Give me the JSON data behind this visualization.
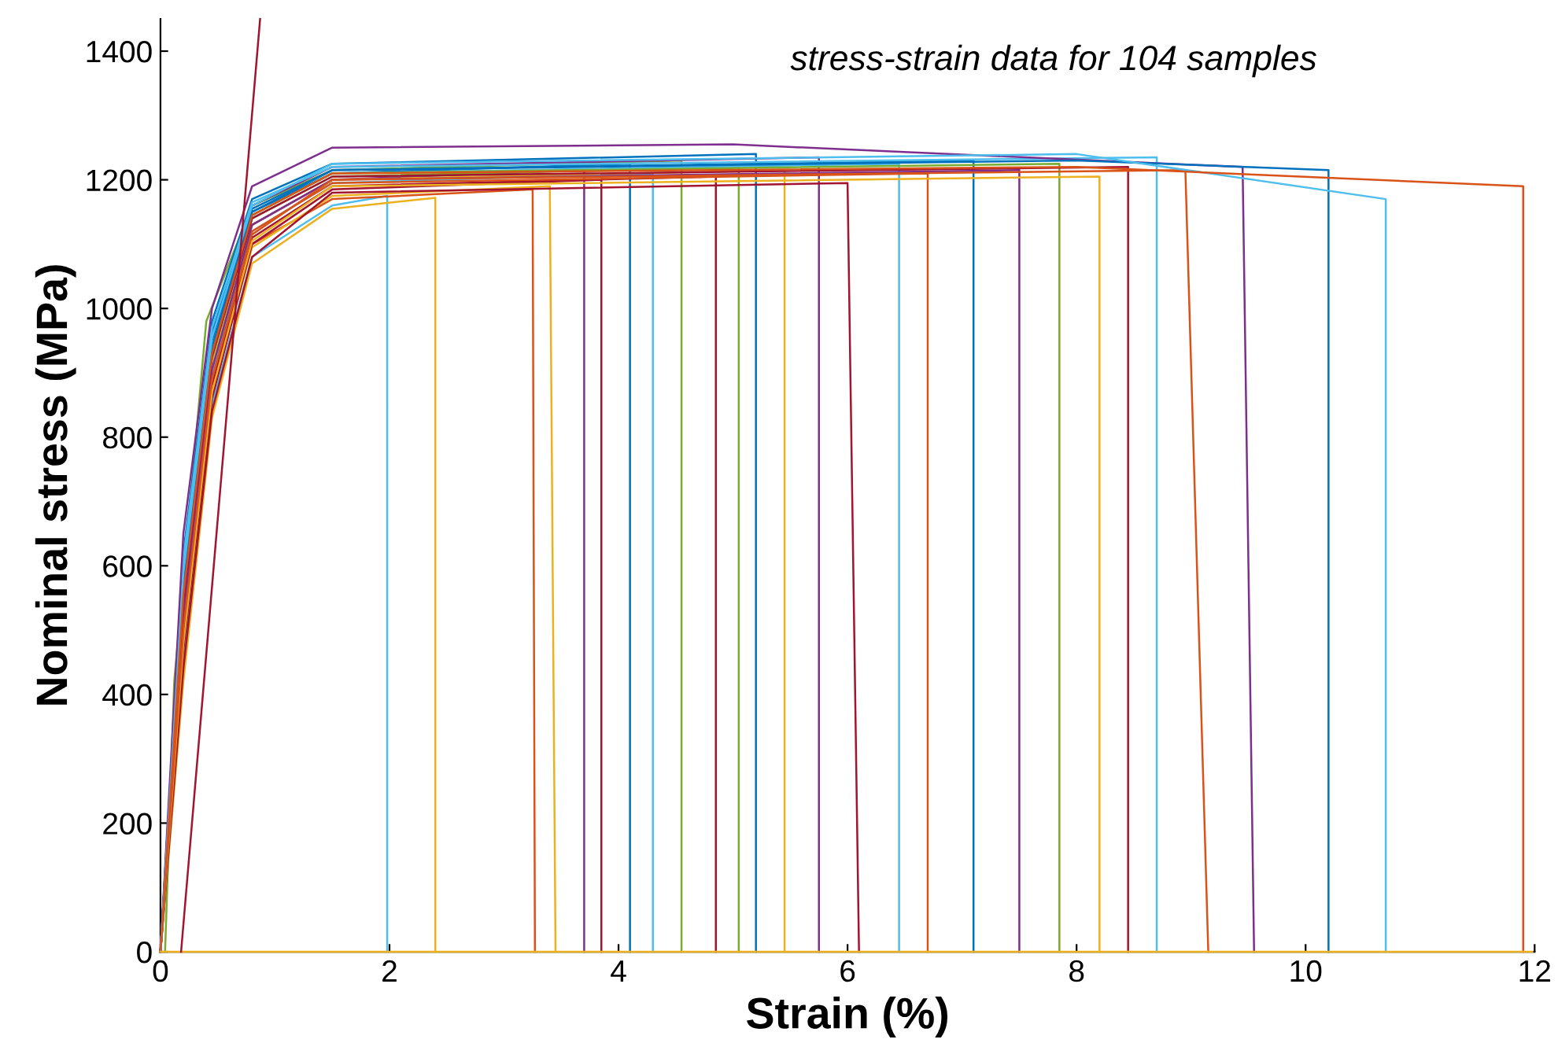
{
  "chart_data": {
    "type": "line",
    "xlabel": "Strain (%)",
    "ylabel": "Nominal stress (MPa)",
    "annotations": [
      "stress-strain data for 104 samples"
    ],
    "xlim": [
      0,
      12
    ],
    "xticks": [
      0,
      2,
      4,
      6,
      8,
      10,
      12
    ],
    "ylim": [
      0,
      1450
    ],
    "yticks": [
      0,
      200,
      400,
      600,
      800,
      1000,
      1200,
      1400
    ],
    "grid": false,
    "legend": false,
    "marker": "none",
    "line_style": "solid",
    "series": [
      {
        "color": "#4dbeee",
        "x": [
          0,
          0.2,
          0.45,
          0.8,
          1.5,
          1.98,
          1.98
        ],
        "values": [
          0,
          450,
          850,
          1080,
          1160,
          1175,
          0
        ]
      },
      {
        "color": "#edb120",
        "x": [
          0,
          0.2,
          0.45,
          0.8,
          1.5,
          2.4,
          2.4
        ],
        "values": [
          0,
          420,
          830,
          1070,
          1155,
          1172,
          0
        ]
      },
      {
        "color": "#d95319",
        "x": [
          0,
          0.2,
          0.45,
          0.8,
          1.5,
          3.25,
          3.27
        ],
        "values": [
          0,
          500,
          880,
          1100,
          1170,
          1185,
          0
        ]
      },
      {
        "color": "#edb120",
        "x": [
          0,
          0.2,
          0.45,
          0.8,
          1.5,
          3.4,
          3.45
        ],
        "values": [
          0,
          480,
          870,
          1095,
          1175,
          1190,
          0
        ]
      },
      {
        "color": "#7e2f8e",
        "x": [
          0,
          0.2,
          0.45,
          0.8,
          1.5,
          3.7,
          3.7
        ],
        "values": [
          0,
          560,
          930,
          1130,
          1200,
          1215,
          0
        ]
      },
      {
        "color": "#a2142f",
        "x": [
          0,
          0.2,
          0.45,
          0.8,
          1.5,
          3.85,
          3.85
        ],
        "values": [
          0,
          470,
          860,
          1100,
          1185,
          1200,
          0
        ]
      },
      {
        "color": "#0072bd",
        "x": [
          0,
          0.2,
          0.45,
          0.8,
          1.5,
          4.1,
          4.1
        ],
        "values": [
          0,
          580,
          950,
          1150,
          1210,
          1225,
          0
        ]
      },
      {
        "color": "#4dbeee",
        "x": [
          0,
          0.2,
          0.45,
          0.8,
          1.5,
          4.3,
          4.3
        ],
        "values": [
          0,
          520,
          900,
          1120,
          1195,
          1210,
          0
        ]
      },
      {
        "color": "#77ac30",
        "x": [
          0.04,
          0.12,
          0.4,
          0.8,
          1.5,
          4.55,
          4.55
        ],
        "values": [
          0,
          420,
          980,
          1160,
          1215,
          1230,
          0
        ]
      },
      {
        "color": "#a2142f",
        "x": [
          0,
          0.2,
          0.45,
          0.8,
          1.5,
          4.85,
          4.85
        ],
        "values": [
          0,
          490,
          880,
          1110,
          1190,
          1205,
          0
        ]
      },
      {
        "color": "#77ac30",
        "x": [
          0,
          0.2,
          0.45,
          0.8,
          1.5,
          5.05,
          5.05
        ],
        "values": [
          0,
          540,
          920,
          1140,
          1205,
          1220,
          0
        ]
      },
      {
        "color": "#0072bd",
        "x": [
          0,
          0.2,
          0.45,
          0.8,
          1.5,
          5.2,
          5.2
        ],
        "values": [
          0,
          620,
          980,
          1170,
          1225,
          1240,
          0
        ]
      },
      {
        "color": "#edb120",
        "x": [
          0,
          0.2,
          0.45,
          0.8,
          1.5,
          5.45,
          5.45
        ],
        "values": [
          0,
          530,
          910,
          1130,
          1200,
          1215,
          0
        ]
      },
      {
        "color": "#7e2f8e",
        "x": [
          0,
          0.2,
          0.45,
          0.8,
          1.5,
          5.75,
          5.75
        ],
        "values": [
          0,
          590,
          960,
          1160,
          1220,
          1235,
          0
        ]
      },
      {
        "color": "#a2142f",
        "x": [
          0,
          0.2,
          0.45,
          0.8,
          1.5,
          6.0,
          6.1
        ],
        "values": [
          0,
          440,
          840,
          1080,
          1180,
          1195,
          0
        ]
      },
      {
        "color": "#4dbeee",
        "x": [
          0,
          0.2,
          0.45,
          0.8,
          1.5,
          6.45,
          6.45
        ],
        "values": [
          0,
          570,
          940,
          1145,
          1210,
          1225,
          0
        ]
      },
      {
        "color": "#d95319",
        "x": [
          0,
          0.2,
          0.45,
          0.8,
          1.5,
          6.7,
          6.7
        ],
        "values": [
          0,
          510,
          890,
          1120,
          1195,
          1210,
          0
        ]
      },
      {
        "color": "#0072bd",
        "x": [
          0,
          0.2,
          0.45,
          0.8,
          1.5,
          7.1,
          7.1
        ],
        "values": [
          0,
          600,
          965,
          1155,
          1215,
          1230,
          0
        ]
      },
      {
        "color": "#7e2f8e",
        "x": [
          0,
          0.2,
          0.45,
          0.8,
          1.5,
          7.5,
          7.5
        ],
        "values": [
          0,
          525,
          905,
          1130,
          1200,
          1215,
          0
        ]
      },
      {
        "color": "#77ac30",
        "x": [
          0,
          0.2,
          0.45,
          0.8,
          1.5,
          7.85,
          7.85
        ],
        "values": [
          0,
          560,
          930,
          1145,
          1210,
          1225,
          0
        ]
      },
      {
        "color": "#edb120",
        "x": [
          0,
          0.2,
          0.45,
          0.8,
          1.5,
          8.2,
          8.2
        ],
        "values": [
          0,
          480,
          870,
          1105,
          1190,
          1205,
          0
        ]
      },
      {
        "color": "#a2142f",
        "x": [
          0,
          0.2,
          0.45,
          0.8,
          1.5,
          8.45,
          8.45
        ],
        "values": [
          0,
          545,
          925,
          1140,
          1205,
          1220,
          0
        ]
      },
      {
        "color": "#4dbeee",
        "x": [
          0,
          0.2,
          0.45,
          0.8,
          1.5,
          8.7,
          8.7
        ],
        "values": [
          0,
          610,
          970,
          1165,
          1220,
          1235,
          0
        ]
      },
      {
        "color": "#d95319",
        "x": [
          0,
          0.2,
          0.45,
          0.8,
          1.5,
          8.95,
          9.15
        ],
        "values": [
          0,
          500,
          890,
          1115,
          1200,
          1215,
          0
        ]
      },
      {
        "color": "#7e2f8e",
        "x": [
          0,
          0.2,
          0.45,
          0.8,
          1.5,
          5,
          9.45,
          9.55
        ],
        "values": [
          0,
          650,
          1000,
          1190,
          1250,
          1255,
          1220,
          0
        ]
      },
      {
        "color": "#0072bd",
        "x": [
          0,
          0.2,
          0.45,
          0.8,
          1.5,
          8,
          10.2,
          10.2
        ],
        "values": [
          0,
          570,
          940,
          1150,
          1215,
          1230,
          1215,
          0
        ]
      },
      {
        "color": "#4dbeee",
        "x": [
          0,
          0.2,
          0.45,
          0.8,
          1.5,
          8,
          10.7,
          10.7
        ],
        "values": [
          0,
          590,
          955,
          1160,
          1225,
          1240,
          1170,
          0
        ]
      },
      {
        "color": "#d95319",
        "x": [
          0,
          0.2,
          0.45,
          0.8,
          1.5,
          8,
          11.9,
          11.9
        ],
        "values": [
          0,
          555,
          930,
          1145,
          1210,
          1220,
          1190,
          0
        ]
      },
      {
        "color": "#edb120",
        "x": [
          0,
          11.98
        ],
        "values": [
          0,
          0
        ]
      },
      {
        "color": "#a2142f",
        "x": [
          0.18,
          0.87
        ],
        "values": [
          0,
          1450
        ]
      }
    ]
  }
}
